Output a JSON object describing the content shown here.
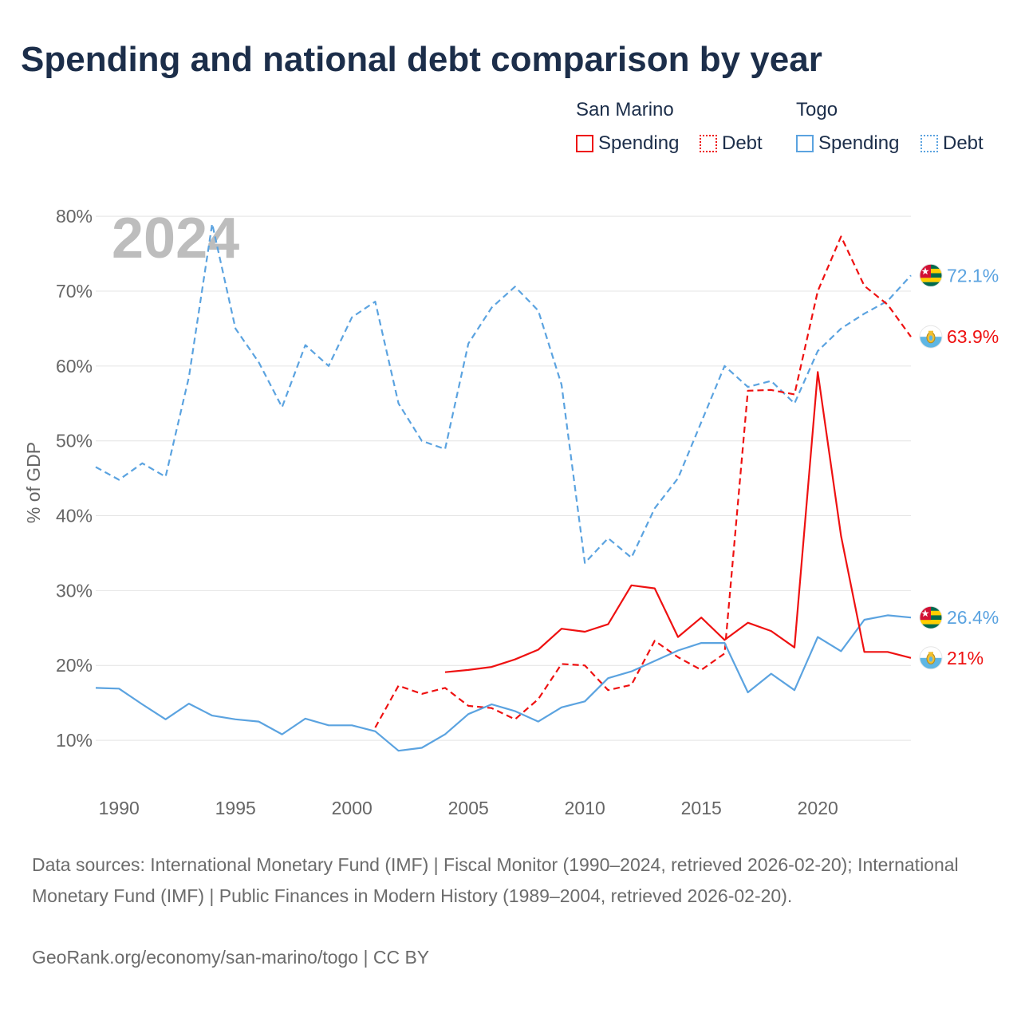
{
  "title": "Spending and national debt comparison by year",
  "legend": {
    "groups": [
      {
        "name": "San Marino",
        "items": [
          "Spending",
          "Debt"
        ],
        "color": "#ee1111"
      },
      {
        "name": "Togo",
        "items": [
          "Spending",
          "Debt"
        ],
        "color": "#5ba3e0"
      }
    ]
  },
  "footer": {
    "sources": "Data sources: International Monetary Fund (IMF) | Fiscal Monitor (1990–2024, retrieved 2026-02-20); International Monetary Fund (IMF) | Public Finances in Modern History (1989–2004, retrieved 2026-02-20).",
    "credit": "GeoRank.org/economy/san-marino/togo | CC BY"
  },
  "chart_data": {
    "type": "line",
    "title": "Spending and national debt comparison by year",
    "ylabel": "% of GDP",
    "xlabel": "",
    "year_label": "2024",
    "xlim": [
      1989,
      2024
    ],
    "ylim": [
      5,
      83
    ],
    "y_ticks": [
      10,
      20,
      30,
      40,
      50,
      60,
      70,
      80
    ],
    "y_tick_labels": [
      "10%",
      "20%",
      "30%",
      "40%",
      "50%",
      "60%",
      "70%",
      "80%"
    ],
    "x_ticks": [
      1990,
      1995,
      2000,
      2005,
      2010,
      2015,
      2020
    ],
    "x_tick_labels": [
      "1990",
      "1995",
      "2000",
      "2005",
      "2010",
      "2015",
      "2020"
    ],
    "grid": true,
    "series": [
      {
        "name": "Togo Debt",
        "country": "Togo",
        "metric": "Debt",
        "color": "#5ba3e0",
        "dashed": true,
        "x": [
          1989,
          1990,
          1991,
          1992,
          1993,
          1994,
          1995,
          1996,
          1997,
          1998,
          1999,
          2000,
          2001,
          2002,
          2003,
          2004,
          2005,
          2006,
          2007,
          2008,
          2009,
          2010,
          2011,
          2012,
          2013,
          2014,
          2015,
          2016,
          2017,
          2018,
          2019,
          2020,
          2021,
          2022,
          2023,
          2024
        ],
        "values": [
          46.5,
          44.8,
          47.0,
          45.2,
          58.5,
          79.0,
          65.0,
          60.5,
          54.5,
          62.8,
          60.0,
          66.5,
          68.6,
          55.0,
          50.0,
          48.9,
          63.0,
          67.8,
          70.6,
          67.4,
          57.5,
          33.7,
          37.0,
          34.4,
          41.0,
          45.0,
          52.5,
          60.0,
          57.2,
          58.0,
          55.0,
          62.0,
          65.0,
          67.0,
          68.7,
          72.1
        ],
        "end_label": "72.1%"
      },
      {
        "name": "San Marino Debt",
        "country": "San Marino",
        "metric": "Debt",
        "color": "#ee1111",
        "dashed": true,
        "x": [
          2001,
          2002,
          2003,
          2004,
          2005,
          2006,
          2007,
          2008,
          2009,
          2010,
          2011,
          2012,
          2013,
          2014,
          2015,
          2016,
          2017,
          2018,
          2019,
          2020,
          2021,
          2022,
          2023,
          2024
        ],
        "values": [
          11.7,
          17.3,
          16.2,
          17.0,
          14.6,
          14.3,
          12.8,
          15.5,
          20.2,
          20.0,
          16.7,
          17.4,
          23.3,
          21.1,
          19.4,
          21.6,
          56.7,
          56.8,
          56.2,
          70.0,
          77.3,
          70.7,
          68.2,
          63.9
        ],
        "end_label": "63.9%"
      },
      {
        "name": "Togo Spending",
        "country": "Togo",
        "metric": "Spending",
        "color": "#5ba3e0",
        "dashed": false,
        "x": [
          1989,
          1990,
          1991,
          1992,
          1993,
          1994,
          1995,
          1996,
          1997,
          1998,
          1999,
          2000,
          2001,
          2002,
          2003,
          2004,
          2005,
          2006,
          2007,
          2008,
          2009,
          2010,
          2011,
          2012,
          2013,
          2014,
          2015,
          2016,
          2017,
          2018,
          2019,
          2020,
          2021,
          2022,
          2023,
          2024
        ],
        "values": [
          17.0,
          16.9,
          14.8,
          12.8,
          14.9,
          13.3,
          12.8,
          12.5,
          10.8,
          12.9,
          12.0,
          12.0,
          11.2,
          8.6,
          9.0,
          10.8,
          13.5,
          14.8,
          13.9,
          12.5,
          14.4,
          15.2,
          18.3,
          19.2,
          20.6,
          22.0,
          23.0,
          23.0,
          16.4,
          18.9,
          16.7,
          23.8,
          21.9,
          26.1,
          26.7,
          26.4
        ],
        "end_label": "26.4%"
      },
      {
        "name": "San Marino Spending",
        "country": "San Marino",
        "metric": "Spending",
        "color": "#ee1111",
        "dashed": false,
        "x": [
          2004,
          2005,
          2006,
          2007,
          2008,
          2009,
          2010,
          2011,
          2012,
          2013,
          2014,
          2015,
          2016,
          2017,
          2018,
          2019,
          2020,
          2021,
          2022,
          2023,
          2024
        ],
        "values": [
          19.1,
          19.4,
          19.8,
          20.8,
          22.1,
          24.9,
          24.5,
          25.5,
          30.7,
          30.3,
          23.8,
          26.4,
          23.4,
          25.7,
          24.6,
          22.4,
          59.2,
          37.3,
          21.8,
          21.8,
          21.0
        ],
        "end_label": "21%"
      }
    ],
    "markers": [
      {
        "country": "Togo",
        "flag": "togo-flag",
        "series": "Togo Debt"
      },
      {
        "country": "San Marino",
        "flag": "san-marino-flag",
        "series": "San Marino Debt"
      },
      {
        "country": "Togo",
        "flag": "togo-flag",
        "series": "Togo Spending"
      },
      {
        "country": "San Marino",
        "flag": "san-marino-flag",
        "series": "San Marino Spending"
      }
    ]
  }
}
